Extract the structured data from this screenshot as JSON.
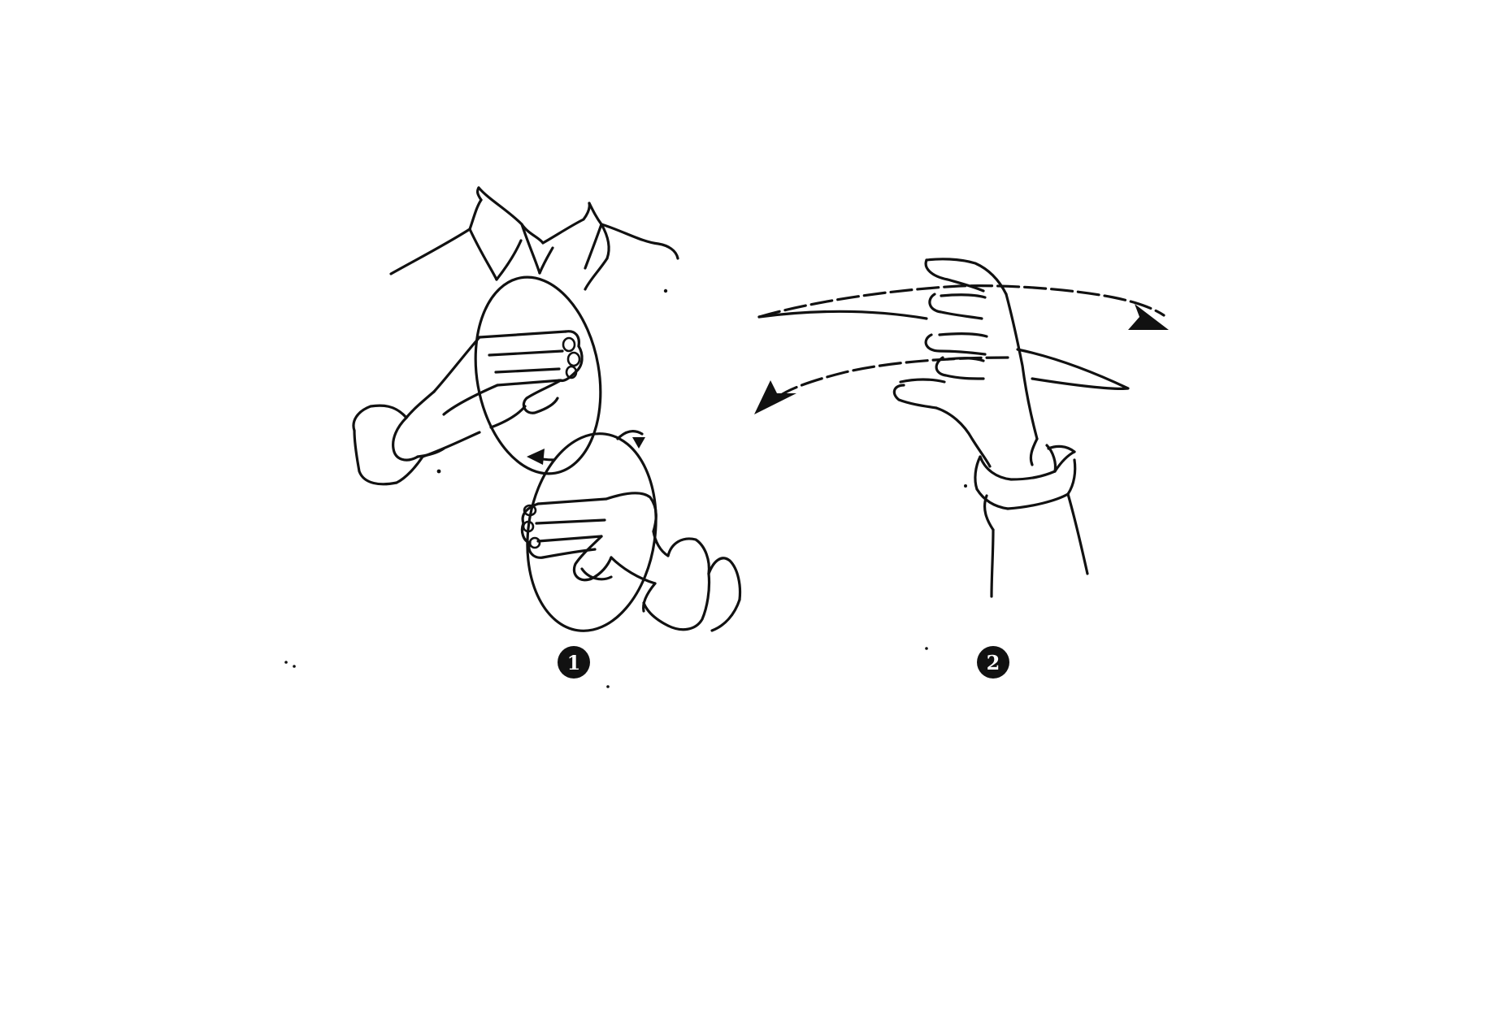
{
  "figures": [
    {
      "number": "1"
    },
    {
      "number": "2"
    }
  ],
  "colors": {
    "ink": "#111111",
    "background": "#ffffff"
  }
}
